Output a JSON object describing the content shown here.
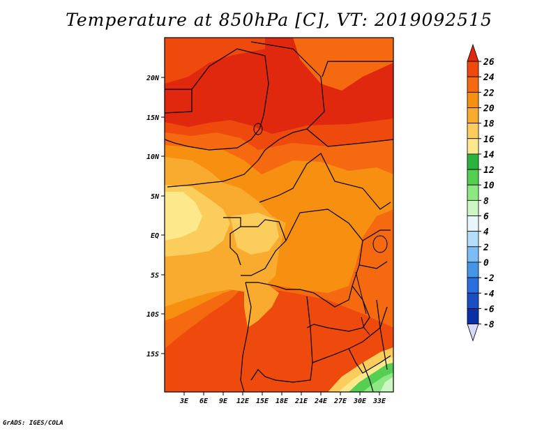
{
  "title": "Temperature at 850hPa [C], VT: 2019092515",
  "credit": "GrADS: IGES/COLA",
  "map": {
    "lat_ticks": [
      "20N",
      "15N",
      "10N",
      "5N",
      "EQ",
      "5S",
      "10S",
      "15S"
    ],
    "lon_ticks": [
      "3E",
      "6E",
      "9E",
      "12E",
      "15E",
      "18E",
      "21E",
      "24E",
      "27E",
      "30E",
      "33E"
    ]
  },
  "colorbar": {
    "labels": [
      "26",
      "24",
      "22",
      "20",
      "18",
      "16",
      "14",
      "12",
      "10",
      "8",
      "6",
      "4",
      "2",
      "0",
      "-2",
      "-4",
      "-6",
      "-8"
    ],
    "colors": [
      "#e0280e",
      "#ef4a0e",
      "#f56a10",
      "#f78f10",
      "#f8ab2e",
      "#fbcd5c",
      "#fde98c",
      "#2ab43e",
      "#55cf52",
      "#8de782",
      "#cdf6c4",
      "#e6f6fb",
      "#b4ddfa",
      "#7dbdf5",
      "#4696e8",
      "#2a6fe0",
      "#1a4fc2",
      "#0b2fa4",
      "#08198c"
    ]
  }
}
